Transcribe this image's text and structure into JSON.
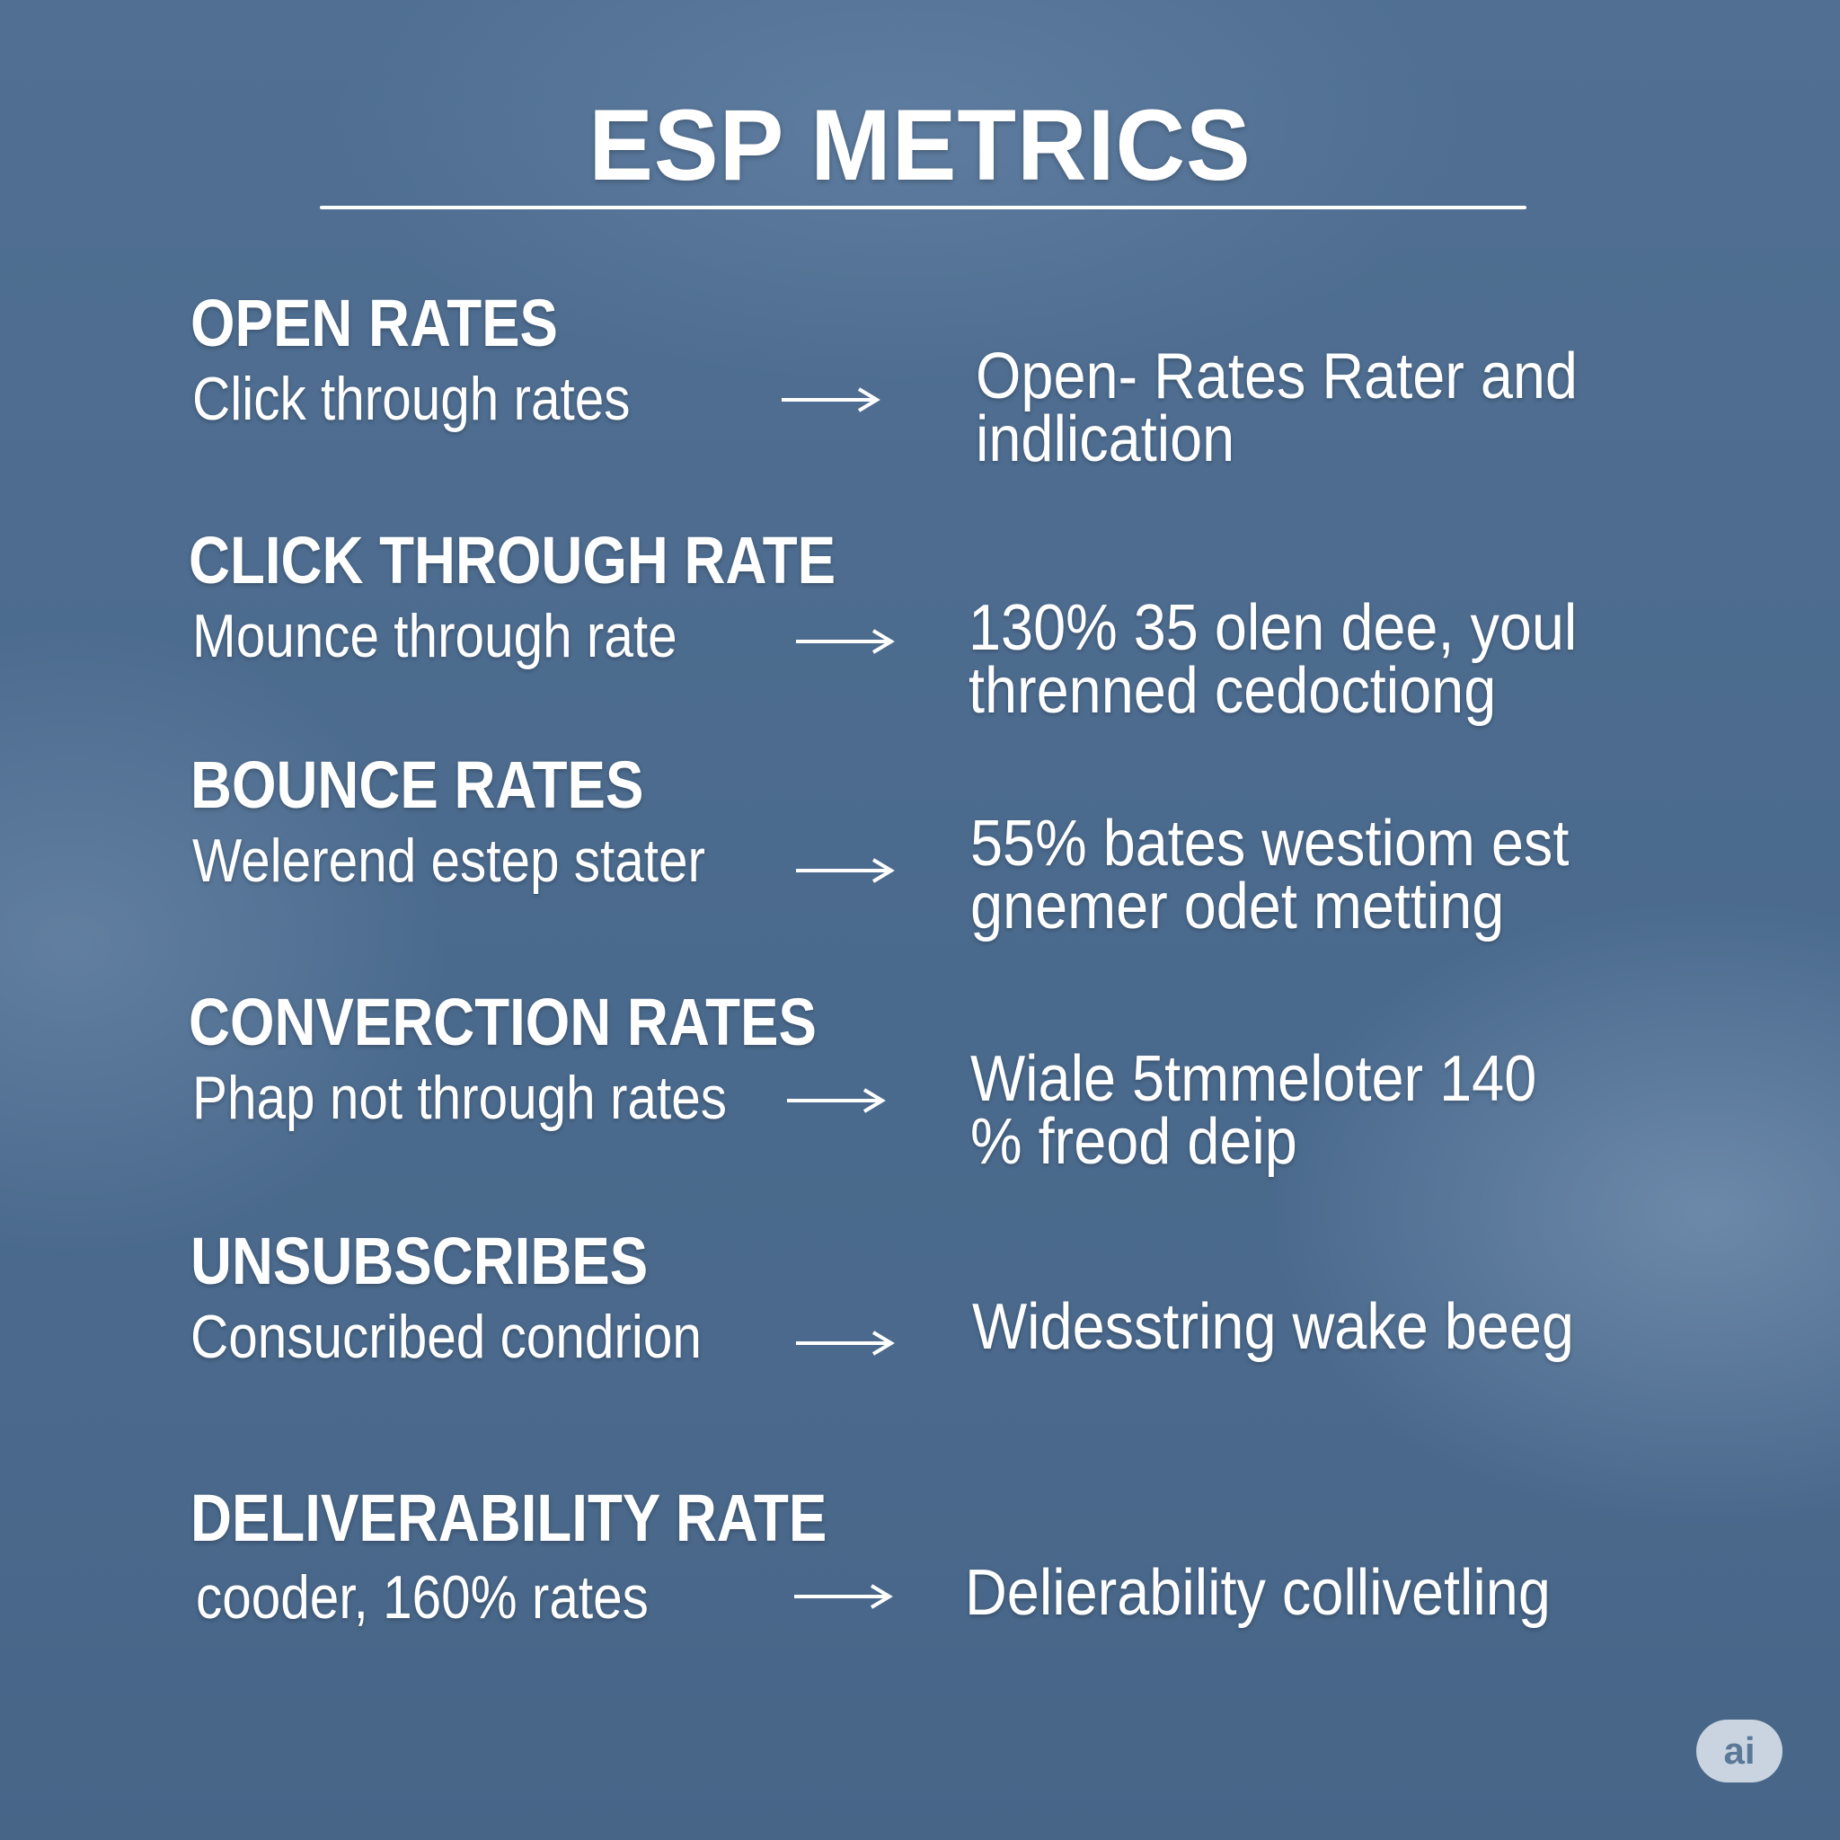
{
  "title": "ESP METRICS",
  "metrics": [
    {
      "heading": "OPEN RATES",
      "subtext": "Click through rates",
      "description": "Open- Rates Rater and indlication"
    },
    {
      "heading": "CLICK THROUGH RATE",
      "subtext": "Mounce through rate",
      "description": "130% 35 olen dee, youl threnned cedoctiong"
    },
    {
      "heading": "BOUNCE RATES",
      "subtext": "Welerend estep stater",
      "description": "55% bates westiom est gnemer odet metting"
    },
    {
      "heading": "CONVERCTION RATES",
      "subtext": "Phap not through rates",
      "description": "Wiale 5tmmeloter 140 % freod deip"
    },
    {
      "heading": "UNSUBSCRIBES",
      "subtext": "Consucribed condrion",
      "description": "Widesstring wake beeg"
    },
    {
      "heading": "DELIVERABILITY RATE",
      "subtext": "cooder, 160% rates",
      "description": "Delierability collivetling"
    }
  ],
  "arrow_icon": "right-arrow-icon",
  "badge": "ai"
}
